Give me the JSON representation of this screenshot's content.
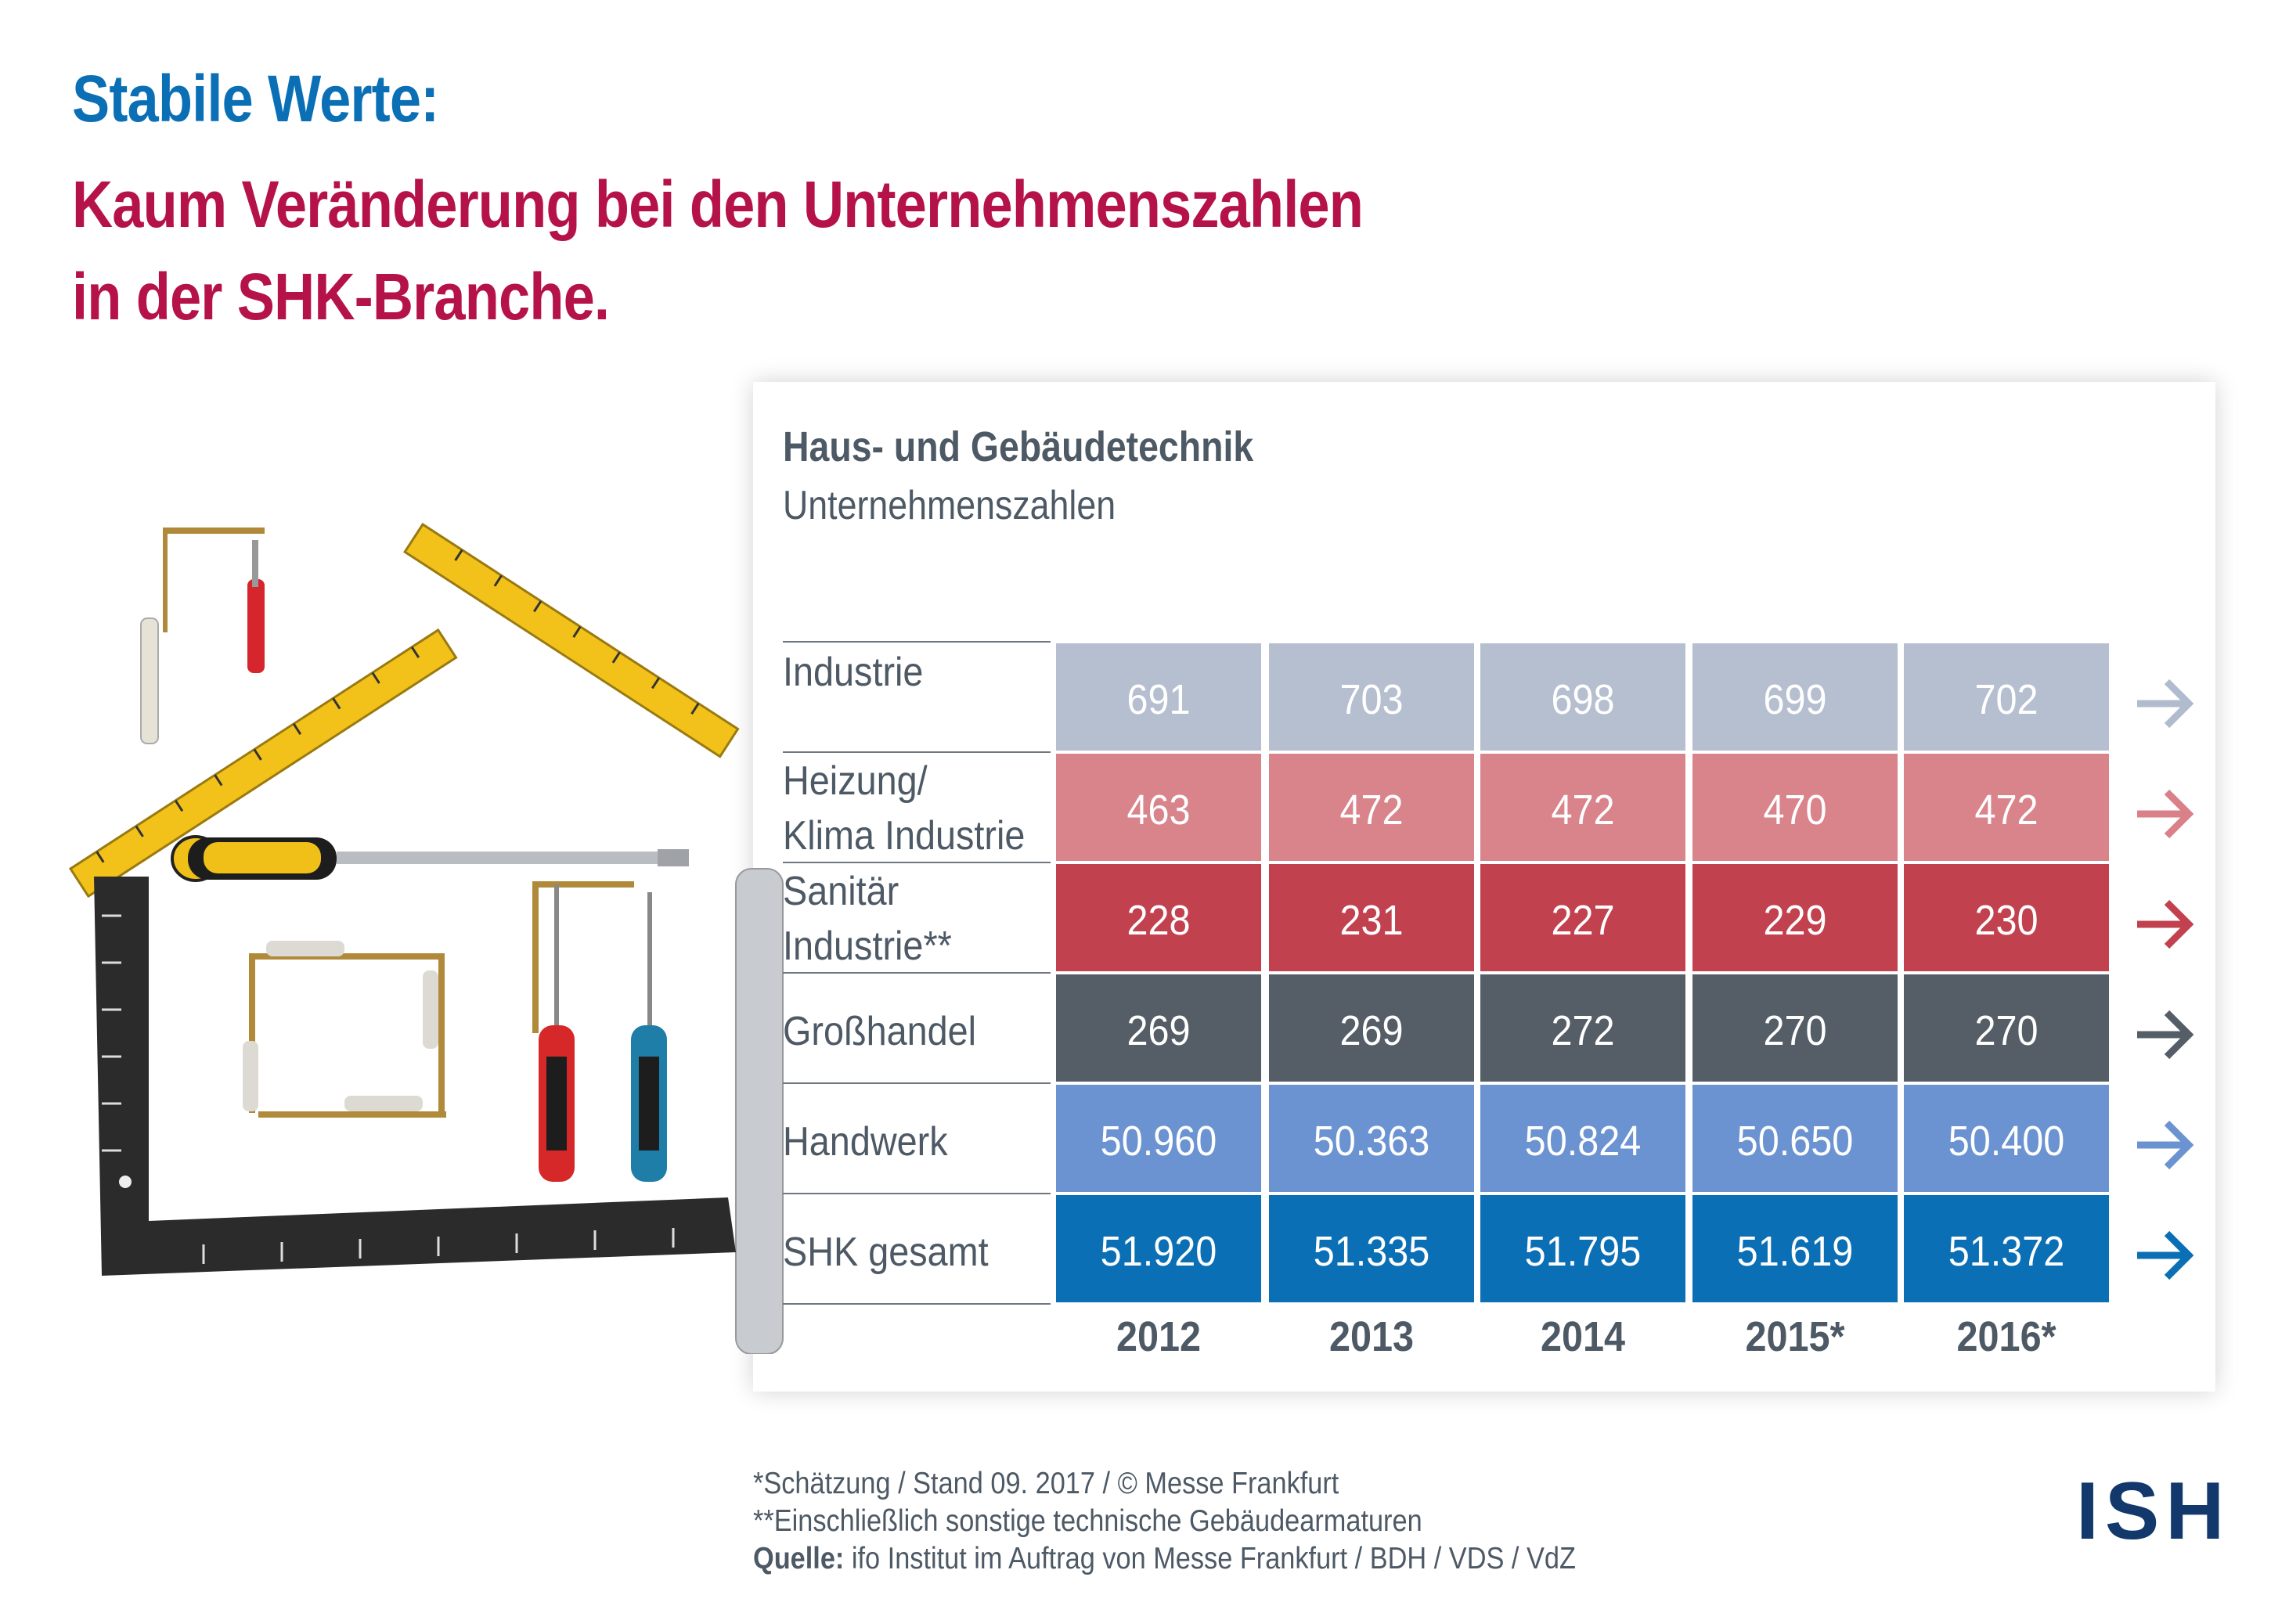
{
  "header": {
    "title_line1": "Stabile Werte:",
    "title_line2": "Kaum Veränderung bei den Unternehmenszahlen",
    "title_line3": "in der SHK-Branche."
  },
  "chart_data": {
    "type": "table",
    "title": "Haus- und Gebäudetechnik",
    "subtitle": "Unternehmenszahlen",
    "categories": [
      "2012",
      "2013",
      "2014",
      "2015*",
      "2016*"
    ],
    "series": [
      {
        "name": "Industrie",
        "name_lines": [
          "Industrie"
        ],
        "values": [
          691,
          703,
          698,
          699,
          702
        ],
        "labels": [
          "691",
          "703",
          "698",
          "699",
          "702"
        ],
        "color": "#b5bfcf",
        "text_color": "#ffffff",
        "arrow_color": "#b0bccd"
      },
      {
        "name": "Heizung/ Klima Industrie",
        "name_lines": [
          "Heizung/",
          "Klima Industrie"
        ],
        "values": [
          463,
          472,
          472,
          470,
          472
        ],
        "labels": [
          "463",
          "472",
          "472",
          "470",
          "472"
        ],
        "color": "#d9838b",
        "text_color": "#ffffff",
        "arrow_color": "#d98088"
      },
      {
        "name": "Sanitär Industrie**",
        "name_lines": [
          "Sanitär",
          "Industrie**"
        ],
        "values": [
          228,
          231,
          227,
          229,
          230
        ],
        "labels": [
          "228",
          "231",
          "227",
          "229",
          "230"
        ],
        "color": "#c2414f",
        "text_color": "#ffffff",
        "arrow_color": "#c2414f"
      },
      {
        "name": "Großhandel",
        "name_lines": [
          "Großhandel"
        ],
        "values": [
          269,
          269,
          272,
          270,
          270
        ],
        "labels": [
          "269",
          "269",
          "272",
          "270",
          "270"
        ],
        "color": "#555e67",
        "text_color": "#ffffff",
        "arrow_color": "#555e67"
      },
      {
        "name": "Handwerk",
        "name_lines": [
          "Handwerk"
        ],
        "values": [
          50960,
          50363,
          50824,
          50650,
          50400
        ],
        "labels": [
          "50.960",
          "50.363",
          "50.824",
          "50.650",
          "50.400"
        ],
        "color": "#6b93d2",
        "text_color": "#ffffff",
        "arrow_color": "#6b93d2"
      },
      {
        "name": "SHK gesamt",
        "name_lines": [
          "SHK gesamt"
        ],
        "values": [
          51920,
          51335,
          51795,
          51619,
          51372
        ],
        "labels": [
          "51.920",
          "51.335",
          "51.795",
          "51.619",
          "51.372"
        ],
        "color": "#0a6fb5",
        "text_color": "#ffffff",
        "arrow_color": "#0a6fb5"
      }
    ]
  },
  "footer": {
    "line1": "*Schätzung / Stand 09. 2017 / © Messe Frankfurt",
    "line2": "**Einschließlich sonstige technische Gebäudearmaturen",
    "source_label": "Quelle:",
    "source_text": " ifo Institut im Auftrag von Messe Frankfurt / BDH / VDS / VdZ"
  },
  "logo": {
    "text": "ISH"
  },
  "colors": {
    "title_blue": "#0a6fb5",
    "title_red": "#b5124a",
    "text_gray": "#4d5965",
    "logo_navy": "#12386c"
  },
  "icons": [
    "house-tools-illustration",
    "arrow-right-icon"
  ]
}
